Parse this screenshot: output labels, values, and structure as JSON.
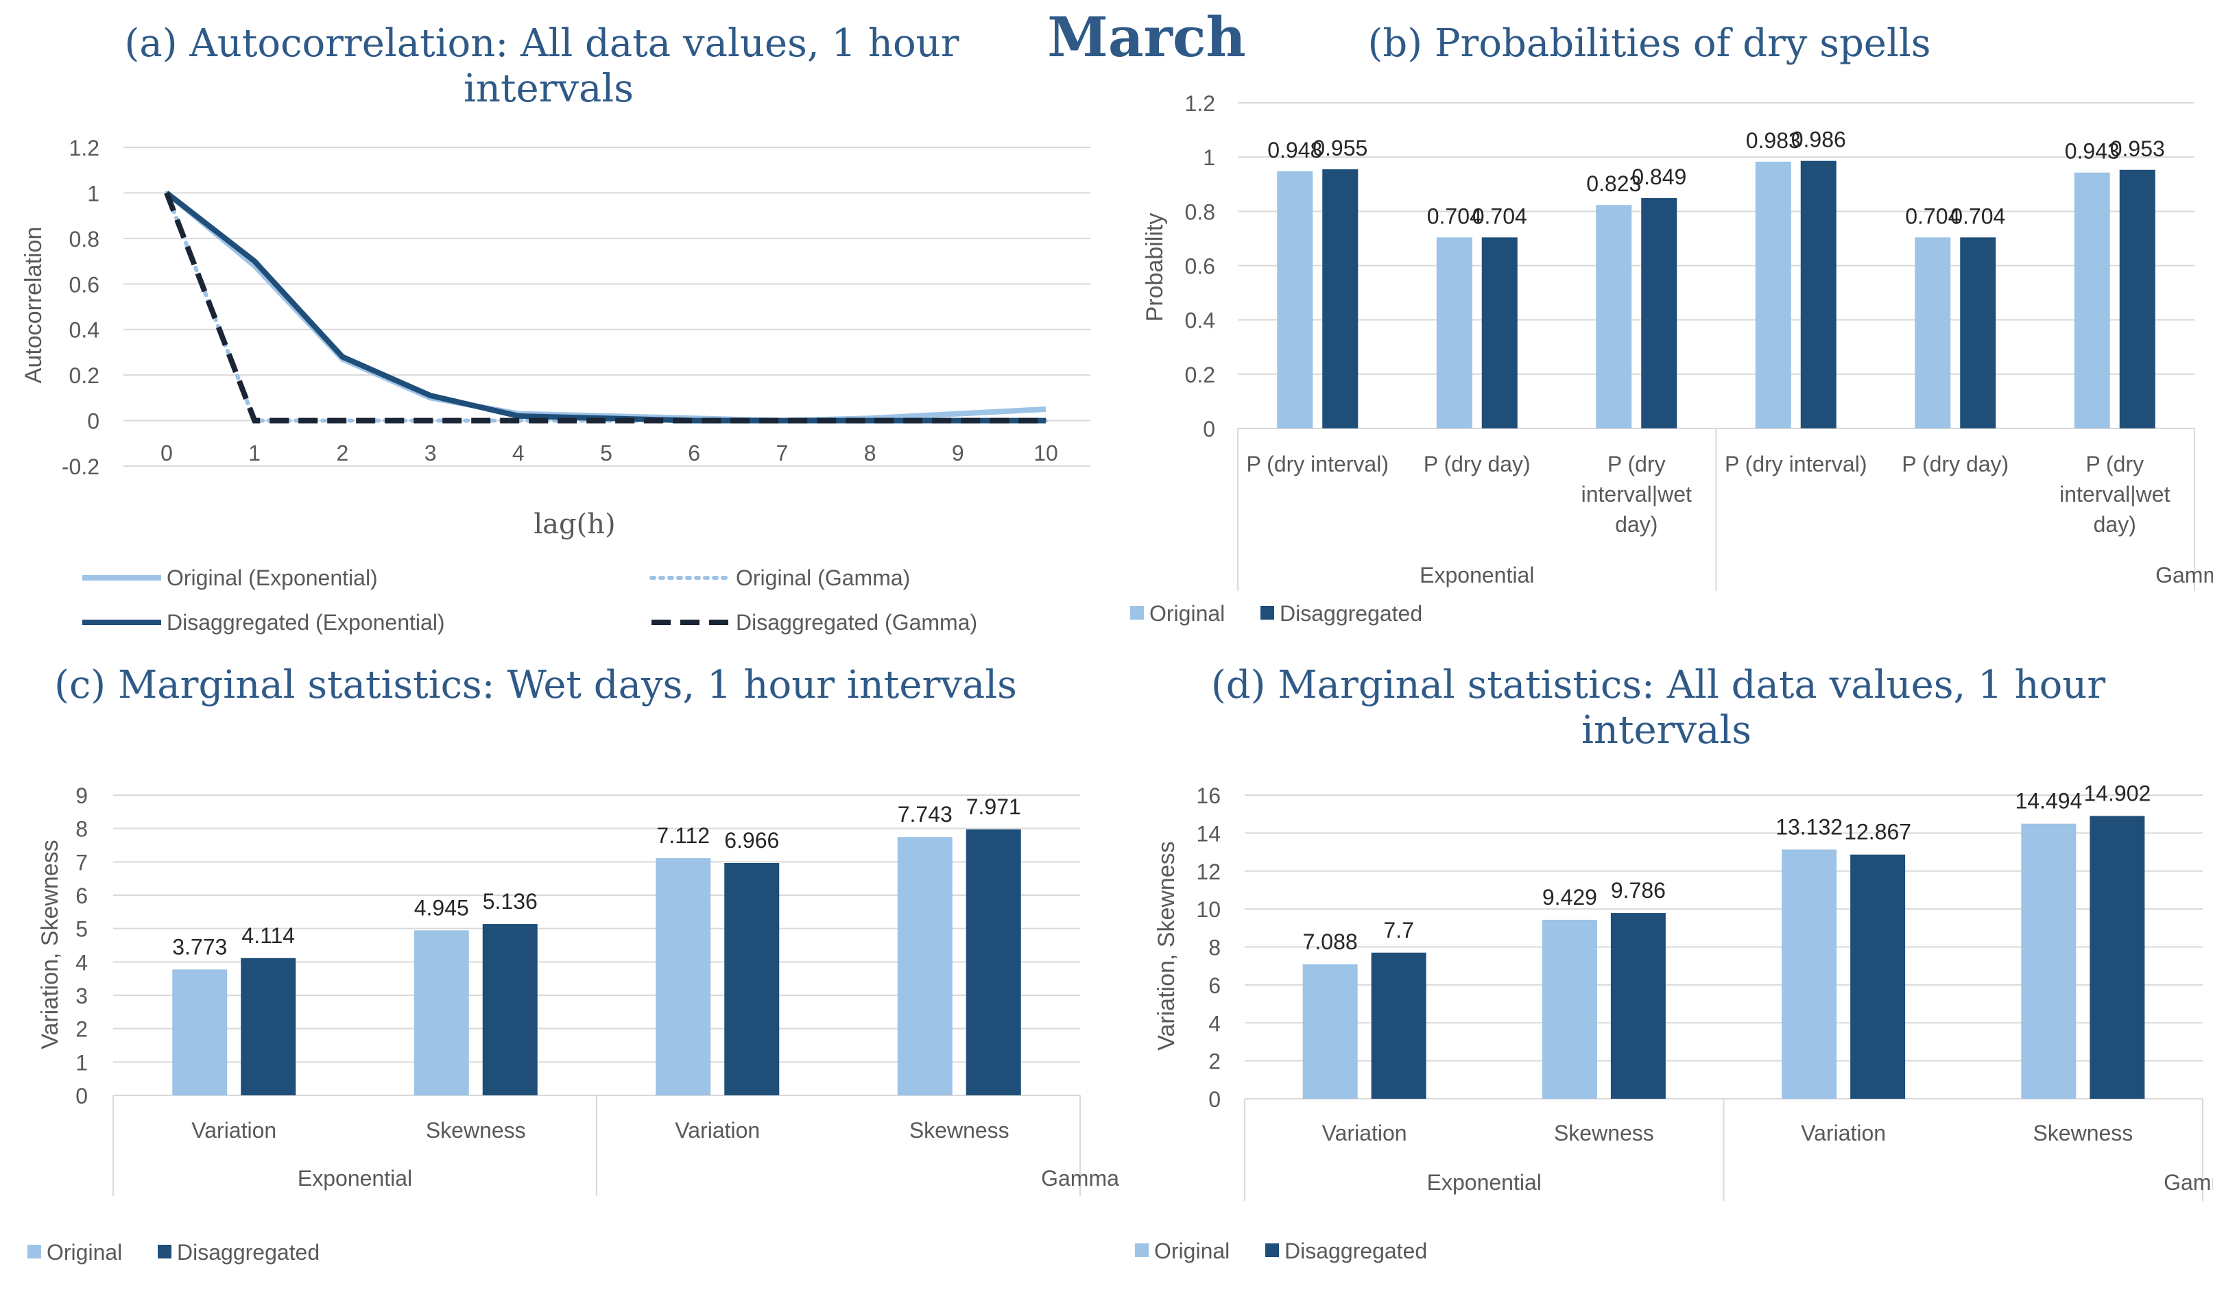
{
  "figure": {
    "month_title": "March",
    "colors": {
      "title": "#2f5a88",
      "original": "#9dc3e6",
      "disaggregated": "#1f4e79",
      "grid": "#d9d9d9",
      "text": "#595959",
      "dark": "#262626"
    }
  },
  "chart_data": [
    {
      "id": "a",
      "type": "line",
      "title_line1": "(a) Autocorrelation: All data values, 1 hour",
      "title_line2": "intervals",
      "xlabel": "lag(h)",
      "ylabel": "Autocorrelation",
      "x": [
        0,
        1,
        2,
        3,
        4,
        5,
        6,
        7,
        8,
        9,
        10
      ],
      "ylim": [
        -0.2,
        1.2
      ],
      "yticks": [
        -0.2,
        0,
        0.2,
        0.4,
        0.6,
        0.8,
        1,
        1.2
      ],
      "ytick_labels": [
        "-0.2",
        "0",
        "0.2",
        "0.4",
        "0.6",
        "0.8",
        "1",
        "1.2"
      ],
      "series": [
        {
          "name": "Original (Exponential)",
          "style": "solid-light",
          "values": [
            1,
            0.68,
            0.27,
            0.1,
            0.03,
            0.02,
            0.01,
            0.0,
            0.01,
            0.03,
            0.05
          ]
        },
        {
          "name": "Original (Gamma)",
          "style": "dotted-light",
          "values": [
            1,
            0,
            0,
            0,
            0,
            0,
            0,
            0,
            0,
            0,
            0
          ]
        },
        {
          "name": "Disaggregated (Exponential)",
          "style": "solid-dark",
          "values": [
            1,
            0.7,
            0.28,
            0.11,
            0.02,
            0.01,
            0.0,
            0.0,
            0.0,
            0.0,
            0.0
          ]
        },
        {
          "name": "Disaggregated (Gamma)",
          "style": "dashed-dark",
          "values": [
            1,
            0,
            0,
            0,
            0,
            0,
            0,
            0,
            0,
            0,
            0
          ]
        }
      ]
    },
    {
      "id": "b",
      "type": "bar",
      "title": "(b) Probabilities of dry spells",
      "ylabel": "Probability",
      "ylim": [
        0,
        1.2
      ],
      "yticks": [
        0,
        0.2,
        0.4,
        0.6,
        0.8,
        1,
        1.2
      ],
      "ytick_labels": [
        "0",
        "0.2",
        "0.4",
        "0.6",
        "0.8",
        "1",
        "1.2"
      ],
      "categories": [
        [
          "P (dry interval)"
        ],
        [
          "P (dry day)"
        ],
        [
          "P (dry",
          "interval|wet",
          "day)"
        ],
        [
          "P (dry interval)"
        ],
        [
          "P (dry day)"
        ],
        [
          "P (dry",
          "interval|wet",
          "day)"
        ]
      ],
      "groups": [
        "Exponential",
        "Gamma"
      ],
      "series": [
        {
          "name": "Original",
          "values": [
            0.948,
            0.704,
            0.823,
            0.983,
            0.704,
            0.943
          ],
          "labels": [
            "0.948",
            "0.704",
            "0.823",
            "0.983",
            "0.704",
            "0.943"
          ]
        },
        {
          "name": "Disaggregated",
          "values": [
            0.955,
            0.704,
            0.849,
            0.986,
            0.704,
            0.953
          ],
          "labels": [
            "0.955",
            "0.704",
            "0.849",
            "0.986",
            "0.704",
            "0.953"
          ]
        }
      ]
    },
    {
      "id": "c",
      "type": "bar",
      "title": "(c) Marginal statistics: Wet days, 1 hour intervals",
      "ylabel": "Variation, Skewness",
      "ylim": [
        0,
        9
      ],
      "yticks": [
        0,
        1,
        2,
        3,
        4,
        5,
        6,
        7,
        8,
        9
      ],
      "ytick_labels": [
        "0",
        "1",
        "2",
        "3",
        "4",
        "5",
        "6",
        "7",
        "8",
        "9"
      ],
      "categories": [
        [
          "Variation"
        ],
        [
          "Skewness"
        ],
        [
          "Variation"
        ],
        [
          "Skewness"
        ]
      ],
      "groups": [
        "Exponential",
        "Gamma"
      ],
      "series": [
        {
          "name": "Original",
          "values": [
            3.773,
            4.945,
            7.112,
            7.743
          ],
          "labels": [
            "3.773",
            "4.945",
            "7.112",
            "7.743"
          ]
        },
        {
          "name": "Disaggregated",
          "values": [
            4.114,
            5.136,
            6.966,
            7.971
          ],
          "labels": [
            "4.114",
            "5.136",
            "6.966",
            "7.971"
          ]
        }
      ]
    },
    {
      "id": "d",
      "type": "bar",
      "title_line1": "(d) Marginal statistics: All data values, 1 hour",
      "title_line2": "intervals",
      "ylabel": "Variation, Skewness",
      "ylim": [
        0,
        16
      ],
      "yticks": [
        0,
        2,
        4,
        6,
        8,
        10,
        12,
        14,
        16
      ],
      "ytick_labels": [
        "0",
        "2",
        "4",
        "6",
        "8",
        "10",
        "12",
        "14",
        "16"
      ],
      "categories": [
        [
          "Variation"
        ],
        [
          "Skewness"
        ],
        [
          "Variation"
        ],
        [
          "Skewness"
        ]
      ],
      "groups": [
        "Exponential",
        "Gamma"
      ],
      "series": [
        {
          "name": "Original",
          "values": [
            7.088,
            9.429,
            13.132,
            14.494
          ],
          "labels": [
            "7.088",
            "9.429",
            "13.132",
            "14.494"
          ]
        },
        {
          "name": "Disaggregated",
          "values": [
            7.7,
            9.786,
            12.867,
            14.902
          ],
          "labels": [
            "7.7",
            "9.786",
            "12.867",
            "14.902"
          ]
        }
      ]
    }
  ]
}
